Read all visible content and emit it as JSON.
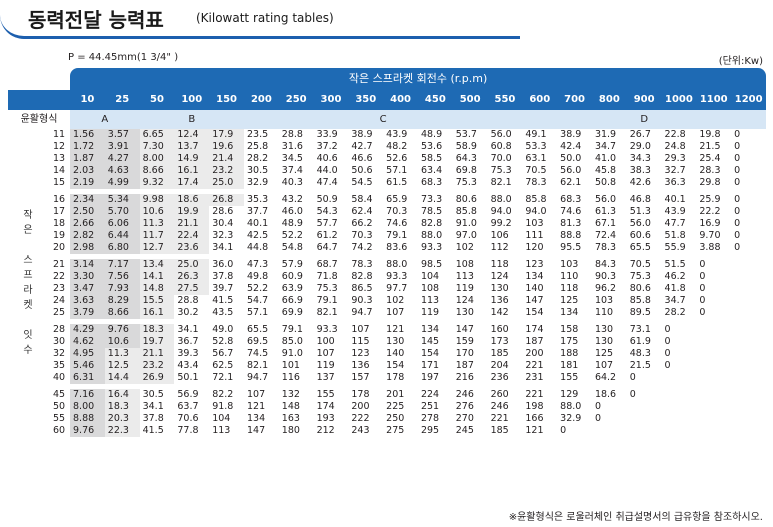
{
  "title": {
    "korean": "동력전달 능력표",
    "english": "(Kilowatt rating tables)"
  },
  "pitch_label": "P = 44.45mm(1 3/4\" )",
  "unit_label": "(단위:Kw)",
  "table": {
    "header_title": "작은 스프라켓 회전수 (r.p.m)",
    "lubrication_label": "윤활형식",
    "small_sprocket_label": [
      "작",
      "은",
      "",
      "스",
      "프",
      "라",
      "켓",
      "",
      "잇",
      "수"
    ],
    "rpm": [
      "10",
      "25",
      "50",
      "100",
      "150",
      "200",
      "250",
      "300",
      "350",
      "400",
      "450",
      "500",
      "550",
      "600",
      "700",
      "800",
      "900",
      "1000",
      "1100",
      "1200"
    ],
    "lubrication_types": [
      {
        "label": "A",
        "span": 2
      },
      {
        "label": "B",
        "span": 3
      },
      {
        "label": "C",
        "span": 8
      },
      {
        "label": "D",
        "span": 7
      }
    ],
    "row_groups": [
      [
        {
          "teeth": "11",
          "values": [
            "1.56",
            "3.57",
            "6.65",
            "12.4",
            "17.9",
            "23.5",
            "28.8",
            "33.9",
            "38.9",
            "43.9",
            "48.9",
            "53.7",
            "56.0",
            "49.1",
            "38.9",
            "31.9",
            "26.7",
            "22.8",
            "19.8",
            "0"
          ]
        },
        {
          "teeth": "12",
          "values": [
            "1.72",
            "3.91",
            "7.30",
            "13.7",
            "19.6",
            "25.8",
            "31.6",
            "37.2",
            "42.7",
            "48.2",
            "53.6",
            "58.9",
            "60.8",
            "53.3",
            "42.4",
            "34.7",
            "29.0",
            "24.8",
            "21.5",
            "0"
          ]
        },
        {
          "teeth": "13",
          "values": [
            "1.87",
            "4.27",
            "8.00",
            "14.9",
            "21.4",
            "28.2",
            "34.5",
            "40.6",
            "46.6",
            "52.6",
            "58.5",
            "64.3",
            "70.0",
            "63.1",
            "50.0",
            "41.0",
            "34.3",
            "29.3",
            "25.4",
            "0"
          ]
        },
        {
          "teeth": "14",
          "values": [
            "2.03",
            "4.63",
            "8.66",
            "16.1",
            "23.2",
            "30.5",
            "37.4",
            "44.0",
            "50.6",
            "57.1",
            "63.4",
            "69.8",
            "75.3",
            "70.5",
            "56.0",
            "45.8",
            "38.3",
            "32.7",
            "28.3",
            "0"
          ]
        },
        {
          "teeth": "15",
          "values": [
            "2.19",
            "4.99",
            "9.32",
            "17.4",
            "25.0",
            "32.9",
            "40.3",
            "47.4",
            "54.5",
            "61.5",
            "68.3",
            "75.3",
            "82.1",
            "78.3",
            "62.1",
            "50.8",
            "42.6",
            "36.3",
            "29.8",
            "0"
          ]
        }
      ],
      [
        {
          "teeth": "16",
          "values": [
            "2.34",
            "5.34",
            "9.98",
            "18.6",
            "26.8",
            "35.3",
            "43.2",
            "50.9",
            "58.4",
            "65.9",
            "73.3",
            "80.6",
            "88.0",
            "85.8",
            "68.3",
            "56.0",
            "46.8",
            "40.1",
            "25.9",
            "0"
          ]
        },
        {
          "teeth": "17",
          "values": [
            "2.50",
            "5.70",
            "10.6",
            "19.9",
            "28.6",
            "37.7",
            "46.0",
            "54.3",
            "62.4",
            "70.3",
            "78.5",
            "85.8",
            "94.0",
            "94.0",
            "74.6",
            "61.3",
            "51.3",
            "43.9",
            "22.2",
            "0"
          ]
        },
        {
          "teeth": "18",
          "values": [
            "2.66",
            "6.06",
            "11.3",
            "21.1",
            "30.4",
            "40.1",
            "48.9",
            "57.7",
            "66.2",
            "74.6",
            "82.8",
            "91.0",
            "99.2",
            "103",
            "81.3",
            "67.1",
            "56.0",
            "47.7",
            "16.9",
            "0"
          ]
        },
        {
          "teeth": "19",
          "values": [
            "2.82",
            "6.44",
            "11.7",
            "22.4",
            "32.3",
            "42.5",
            "52.2",
            "61.2",
            "70.3",
            "79.1",
            "88.0",
            "97.0",
            "106",
            "111",
            "88.8",
            "72.4",
            "60.6",
            "51.8",
            "9.70",
            "0"
          ]
        },
        {
          "teeth": "20",
          "values": [
            "2.98",
            "6.80",
            "12.7",
            "23.6",
            "34.1",
            "44.8",
            "54.8",
            "64.7",
            "74.2",
            "83.6",
            "93.3",
            "102",
            "112",
            "120",
            "95.5",
            "78.3",
            "65.5",
            "55.9",
            "3.88",
            "0"
          ]
        }
      ],
      [
        {
          "teeth": "21",
          "values": [
            "3.14",
            "7.17",
            "13.4",
            "25.0",
            "36.0",
            "47.3",
            "57.9",
            "68.7",
            "78.3",
            "88.0",
            "98.5",
            "108",
            "118",
            "123",
            "103",
            "84.3",
            "70.5",
            "51.5",
            "0",
            ""
          ]
        },
        {
          "teeth": "22",
          "values": [
            "3.30",
            "7.56",
            "14.1",
            "26.3",
            "37.8",
            "49.8",
            "60.9",
            "71.8",
            "82.8",
            "93.3",
            "104",
            "113",
            "124",
            "134",
            "110",
            "90.3",
            "75.3",
            "46.2",
            "0",
            ""
          ]
        },
        {
          "teeth": "23",
          "values": [
            "3.47",
            "7.93",
            "14.8",
            "27.5",
            "39.7",
            "52.2",
            "63.9",
            "75.3",
            "86.5",
            "97.7",
            "108",
            "119",
            "130",
            "140",
            "118",
            "96.2",
            "80.6",
            "41.8",
            "0",
            ""
          ]
        },
        {
          "teeth": "24",
          "values": [
            "3.63",
            "8.29",
            "15.5",
            "28.8",
            "41.5",
            "54.7",
            "66.9",
            "79.1",
            "90.3",
            "102",
            "113",
            "124",
            "136",
            "147",
            "125",
            "103",
            "85.8",
            "34.7",
            "0",
            ""
          ]
        },
        {
          "teeth": "25",
          "values": [
            "3.79",
            "8.66",
            "16.1",
            "30.2",
            "43.5",
            "57.1",
            "69.9",
            "82.1",
            "94.7",
            "107",
            "119",
            "130",
            "142",
            "154",
            "134",
            "110",
            "89.5",
            "28.2",
            "0",
            ""
          ]
        }
      ],
      [
        {
          "teeth": "28",
          "values": [
            "4.29",
            "9.76",
            "18.3",
            "34.1",
            "49.0",
            "65.5",
            "79.1",
            "93.3",
            "107",
            "121",
            "134",
            "147",
            "160",
            "174",
            "158",
            "130",
            "73.1",
            "0",
            "",
            ""
          ]
        },
        {
          "teeth": "30",
          "values": [
            "4.62",
            "10.6",
            "19.7",
            "36.7",
            "52.8",
            "69.5",
            "85.0",
            "100",
            "115",
            "130",
            "145",
            "159",
            "173",
            "187",
            "175",
            "130",
            "61.9",
            "0",
            "",
            ""
          ]
        },
        {
          "teeth": "32",
          "values": [
            "4.95",
            "11.3",
            "21.1",
            "39.3",
            "56.7",
            "74.5",
            "91.0",
            "107",
            "123",
            "140",
            "154",
            "170",
            "185",
            "200",
            "188",
            "125",
            "48.3",
            "0",
            "",
            ""
          ]
        },
        {
          "teeth": "35",
          "values": [
            "5.46",
            "12.5",
            "23.2",
            "43.4",
            "62.5",
            "82.1",
            "101",
            "119",
            "136",
            "154",
            "171",
            "187",
            "204",
            "221",
            "181",
            "107",
            "21.5",
            "0",
            "",
            ""
          ]
        },
        {
          "teeth": "40",
          "values": [
            "6.31",
            "14.4",
            "26.9",
            "50.1",
            "72.1",
            "94.7",
            "116",
            "137",
            "157",
            "178",
            "197",
            "216",
            "236",
            "231",
            "155",
            "64.2",
            "0",
            "",
            "",
            ""
          ]
        }
      ],
      [
        {
          "teeth": "45",
          "values": [
            "7.16",
            "16.4",
            "30.5",
            "56.9",
            "82.2",
            "107",
            "132",
            "155",
            "178",
            "201",
            "224",
            "246",
            "260",
            "221",
            "129",
            "18.6",
            "0",
            "",
            "",
            ""
          ]
        },
        {
          "teeth": "50",
          "values": [
            "8.00",
            "18.3",
            "34.1",
            "63.7",
            "91.8",
            "121",
            "148",
            "174",
            "200",
            "225",
            "251",
            "276",
            "246",
            "198",
            "88.0",
            "0",
            "",
            "",
            "",
            ""
          ]
        },
        {
          "teeth": "55",
          "values": [
            "8.88",
            "20.3",
            "37.8",
            "70.6",
            "104",
            "134",
            "163",
            "193",
            "222",
            "250",
            "278",
            "270",
            "221",
            "166",
            "32.9",
            "0",
            "",
            "",
            "",
            ""
          ]
        },
        {
          "teeth": "60",
          "values": [
            "9.76",
            "22.3",
            "41.5",
            "77.8",
            "113",
            "147",
            "180",
            "212",
            "243",
            "275",
            "295",
            "245",
            "185",
            "121",
            "0",
            "",
            "",
            "",
            "",
            ""
          ]
        }
      ]
    ],
    "zone_boundaries": [
      [
        2,
        5,
        13
      ],
      [
        2,
        5,
        13
      ],
      [
        2,
        5,
        12
      ],
      [
        2,
        5,
        12
      ],
      [
        2,
        5,
        12
      ],
      [
        2,
        5,
        10
      ],
      [
        2,
        4,
        9
      ],
      [
        2,
        4,
        9
      ],
      [
        2,
        4,
        9
      ],
      [
        2,
        4,
        8
      ],
      [
        2,
        4,
        8
      ],
      [
        2,
        4,
        8
      ],
      [
        2,
        4,
        8
      ],
      [
        2,
        3,
        7
      ],
      [
        2,
        3,
        7
      ],
      [
        2,
        3,
        6
      ],
      [
        2,
        3,
        6
      ],
      [
        1,
        3,
        6
      ],
      [
        1,
        3,
        5
      ],
      [
        1,
        3,
        5
      ],
      [
        1,
        2,
        4
      ],
      [
        1,
        2,
        4
      ],
      [
        1,
        2,
        4
      ],
      [
        1,
        2,
        4
      ],
      [
        1,
        2,
        4
      ]
    ]
  },
  "footnote": "※윤활형식은 로울러체인 취급설명서의 급유항을 참조하시오."
}
